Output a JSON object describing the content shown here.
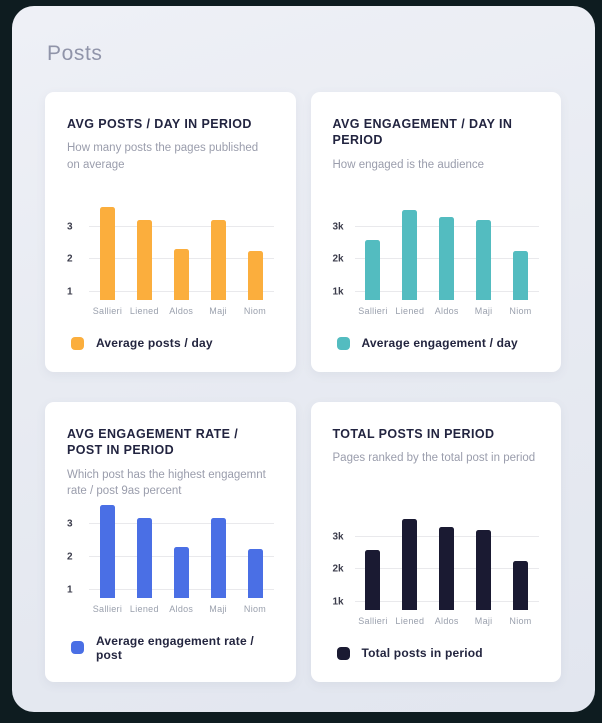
{
  "page": {
    "title": "Posts"
  },
  "colors": {
    "page_bg": "#0e1c20",
    "panel_bg": "#e8ebf2",
    "card_bg": "#ffffff",
    "orange": "#FBAE3D",
    "teal": "#53BCC0",
    "blue": "#4A6FE5",
    "navy": "#1A1A32",
    "title_text": "#222440",
    "subtitle_text": "#9a9dac"
  },
  "cards": [
    {
      "title": "AVG POSTS / DAY IN PERIOD",
      "subtitle": "How many posts the pages published on average",
      "legend_label": "Average posts / day"
    },
    {
      "title": "AVG ENGAGEMENT / DAY IN PERIOD",
      "subtitle": "How engaged is the audience",
      "legend_label": "Average engagement / day"
    },
    {
      "title": "AVG ENGAGEMENT RATE / POST IN PERIOD",
      "subtitle": "Which post has the highest engagemnt rate / post 9as percent",
      "legend_label": "Average engagement rate / post"
    },
    {
      "title": "TOTAL POSTS IN PERIOD",
      "subtitle": "Pages ranked by the total post in period",
      "legend_label": "Total posts in period"
    }
  ],
  "chart_data": [
    {
      "type": "bar",
      "title": "AVG POSTS / DAY IN PERIOD",
      "categories": [
        "Sallieri",
        "Liened",
        "Aldos",
        "Maji",
        "Niom"
      ],
      "values": [
        3.6,
        3.2,
        2.3,
        3.2,
        2.25
      ],
      "series_label": "Average posts / day",
      "bar_color": "#FBAE3D",
      "yticks": [
        1,
        2,
        3
      ],
      "ytick_labels": [
        "1",
        "2",
        "3"
      ],
      "ylim": [
        0.75,
        3.75
      ],
      "xlabel": "",
      "ylabel": "",
      "grid": true,
      "legend_position": "bottom"
    },
    {
      "type": "bar",
      "title": "AVG ENGAGEMENT / DAY IN PERIOD",
      "categories": [
        "Sallieri",
        "Liened",
        "Aldos",
        "Maji",
        "Niom"
      ],
      "values": [
        2600,
        3500,
        3300,
        3200,
        2250
      ],
      "series_label": "Average engagement / day",
      "bar_color": "#53BCC0",
      "yticks": [
        1000,
        2000,
        3000
      ],
      "ytick_labels": [
        "1k",
        "2k",
        "3k"
      ],
      "ylim": [
        750,
        3750
      ],
      "xlabel": "",
      "ylabel": "",
      "grid": true,
      "legend_position": "bottom"
    },
    {
      "type": "bar",
      "title": "AVG ENGAGEMENT RATE / POST IN PERIOD",
      "categories": [
        "Sallieri",
        "Liened",
        "Aldos",
        "Maji",
        "Niom"
      ],
      "values": [
        3.6,
        3.2,
        2.3,
        3.2,
        2.25
      ],
      "series_label": "Average engagement rate / post",
      "bar_color": "#4A6FE5",
      "yticks": [
        1,
        2,
        3
      ],
      "ytick_labels": [
        "1",
        "2",
        "3"
      ],
      "ylim": [
        0.75,
        3.75
      ],
      "xlabel": "",
      "ylabel": "",
      "grid": true,
      "legend_position": "bottom"
    },
    {
      "type": "bar",
      "title": "TOTAL POSTS IN PERIOD",
      "categories": [
        "Sallieri",
        "Liened",
        "Aldos",
        "Maji",
        "Niom"
      ],
      "values": [
        2600,
        3550,
        3300,
        3200,
        2250
      ],
      "series_label": "Total posts in period",
      "bar_color": "#1A1A32",
      "yticks": [
        1000,
        2000,
        3000
      ],
      "ytick_labels": [
        "1k",
        "2k",
        "3k"
      ],
      "ylim": [
        750,
        3750
      ],
      "xlabel": "",
      "ylabel": "",
      "grid": true,
      "legend_position": "bottom"
    }
  ]
}
